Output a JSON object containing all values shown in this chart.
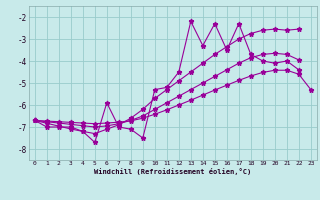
{
  "xlabel": "Windchill (Refroidissement éolien,°C)",
  "bg_color": "#c8eaea",
  "line_color": "#990099",
  "grid_color": "#99cccc",
  "xlim": [
    -0.5,
    23.5
  ],
  "ylim": [
    -8.5,
    -1.5
  ],
  "yticks": [
    -8,
    -7,
    -6,
    -5,
    -4,
    -3,
    -2
  ],
  "xticks": [
    0,
    1,
    2,
    3,
    4,
    5,
    6,
    7,
    8,
    9,
    10,
    11,
    12,
    13,
    14,
    15,
    16,
    17,
    18,
    19,
    20,
    21,
    22,
    23
  ],
  "series1": [
    0,
    1,
    2,
    3,
    4,
    5,
    6,
    7,
    8,
    9,
    10,
    11,
    12,
    13,
    14,
    15,
    16,
    17,
    18,
    19,
    20,
    21,
    22
  ],
  "vals1": [
    -6.7,
    -7.0,
    -7.0,
    -7.0,
    -7.2,
    -7.7,
    -5.9,
    -7.0,
    -7.1,
    -7.5,
    -5.3,
    -5.2,
    -4.5,
    -2.2,
    -3.3,
    -2.3,
    -3.5,
    -2.3,
    -3.7,
    -4.0,
    -4.1,
    -4.0,
    -4.4
  ],
  "series2x": [
    0,
    1,
    2,
    3,
    4,
    5,
    6,
    7,
    8,
    9,
    10,
    11,
    12,
    13,
    14,
    15,
    16,
    17,
    18,
    19,
    20,
    21,
    22
  ],
  "vals2": [
    -6.7,
    -6.83,
    -6.96,
    -7.09,
    -7.2,
    -7.3,
    -7.1,
    -6.9,
    -6.6,
    -6.2,
    -5.7,
    -5.3,
    -4.9,
    -4.5,
    -4.1,
    -3.7,
    -3.35,
    -3.0,
    -2.75,
    -2.6,
    -2.55,
    -2.6,
    -2.55
  ],
  "series3x": [
    0,
    1,
    2,
    3,
    4,
    5,
    6,
    7,
    8,
    9,
    10,
    11,
    12,
    13,
    14,
    15,
    16,
    17,
    18,
    19,
    20,
    21,
    22
  ],
  "vals3": [
    -6.7,
    -6.76,
    -6.82,
    -6.88,
    -6.94,
    -7.0,
    -6.95,
    -6.85,
    -6.7,
    -6.5,
    -6.2,
    -5.9,
    -5.6,
    -5.3,
    -5.0,
    -4.7,
    -4.4,
    -4.1,
    -3.85,
    -3.7,
    -3.65,
    -3.7,
    -3.95
  ],
  "series4x": [
    0,
    1,
    2,
    3,
    4,
    5,
    6,
    7,
    8,
    9,
    10,
    11,
    12,
    13,
    14,
    15,
    16,
    17,
    18,
    19,
    20,
    21,
    22,
    23
  ],
  "vals4": [
    -6.7,
    -6.73,
    -6.76,
    -6.79,
    -6.82,
    -6.85,
    -6.82,
    -6.78,
    -6.72,
    -6.6,
    -6.42,
    -6.22,
    -6.0,
    -5.78,
    -5.55,
    -5.32,
    -5.1,
    -4.88,
    -4.68,
    -4.52,
    -4.42,
    -4.42,
    -4.6,
    -5.3
  ]
}
